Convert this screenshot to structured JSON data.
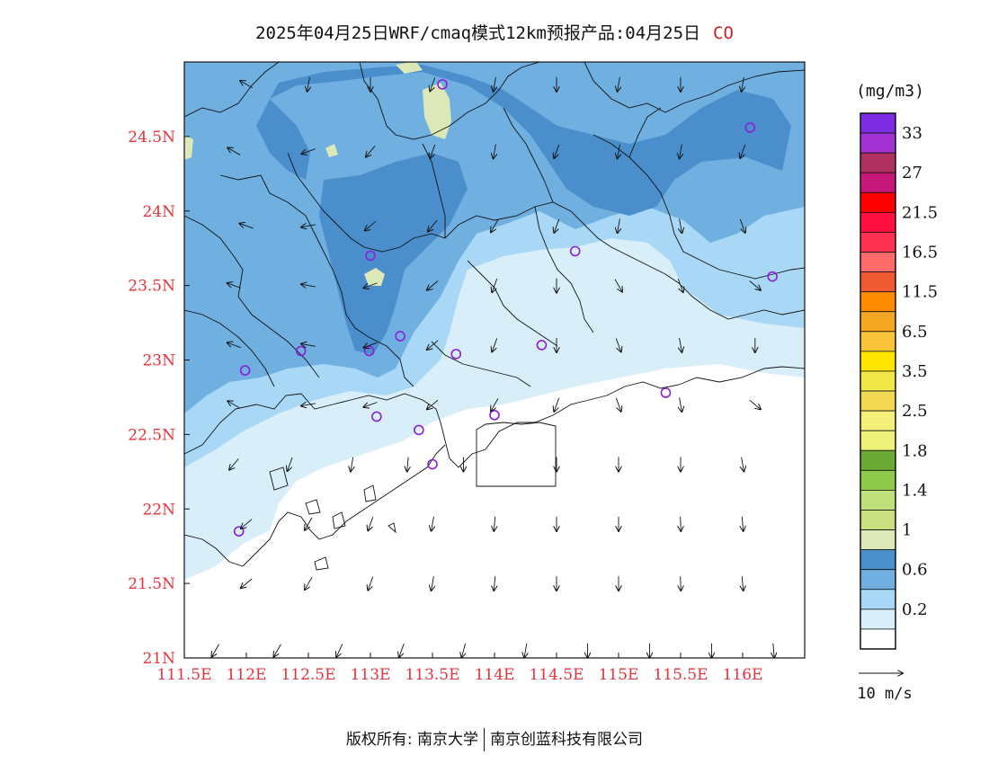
{
  "title": {
    "main": "2025年04月25日WRF/cmaq模式12km预报产品:04月25日",
    "species": "CO"
  },
  "axes": {
    "x_ticks": [
      "111.5E",
      "112E",
      "112.5E",
      "113E",
      "113.5E",
      "114E",
      "114.5E",
      "115E",
      "115.5E",
      "116E"
    ],
    "y_ticks": [
      "21N",
      "21.5N",
      "22N",
      "22.5N",
      "23N",
      "23.5N",
      "24N",
      "24.5N"
    ],
    "x_range": [
      111.5,
      116.5
    ],
    "y_range": [
      21.0,
      25.0
    ],
    "tick_color": "#e5323b"
  },
  "legend": {
    "unit": "(mg/m3)",
    "labels": [
      "33",
      "27",
      "21.5",
      "16.5",
      "11.5",
      "6.5",
      "3.5",
      "2.5",
      "1.8",
      "1.4",
      "1",
      "0.6",
      "0.2"
    ],
    "colors_top_to_bottom": [
      "#7b2be0",
      "#a332d4",
      "#b03060",
      "#c8177a",
      "#ff0000",
      "#ff1040",
      "#ff3050",
      "#ff6a6a",
      "#f05a30",
      "#ff8c00",
      "#f5a623",
      "#f7c43a",
      "#ffe600",
      "#f3e84a",
      "#f0d850",
      "#f4f07a",
      "#eef27a",
      "#6aaa35",
      "#8fca4a",
      "#bfe07a",
      "#c8e080",
      "#dce8b8",
      "#4a8fcc",
      "#6fb0e0",
      "#a8d8f5",
      "#d8eef9",
      "#ffffff"
    ]
  },
  "wind_scale": {
    "label": "10 m/s"
  },
  "footer": {
    "left": "版权所有: 南京大学",
    "right": "南京创蓝科技有限公司"
  },
  "map": {
    "fill_colors": {
      "band_white": "#ffffff",
      "band_0_2": "#d8eef9",
      "band_0_6": "#a8d8f5",
      "band_0_8": "#6fb0e0",
      "band_1": "#4a8fcc",
      "band_1_2": "#dce8b8"
    },
    "stations": [
      [
        113.58,
        24.85
      ],
      [
        116.06,
        24.56
      ],
      [
        114.65,
        23.73
      ],
      [
        116.24,
        23.56
      ],
      [
        113.0,
        23.7
      ],
      [
        113.24,
        23.16
      ],
      [
        112.99,
        23.06
      ],
      [
        112.44,
        23.06
      ],
      [
        111.99,
        22.93
      ],
      [
        113.69,
        23.04
      ],
      [
        114.38,
        23.1
      ],
      [
        115.38,
        22.78
      ],
      [
        113.05,
        22.62
      ],
      [
        113.39,
        22.53
      ],
      [
        114.0,
        22.63
      ],
      [
        113.5,
        22.3
      ],
      [
        111.94,
        21.85
      ]
    ],
    "wind_arrows": [
      [
        111.75,
        21.05,
        210
      ],
      [
        112.25,
        21.05,
        210
      ],
      [
        112.75,
        21.05,
        205
      ],
      [
        113.25,
        21.05,
        200
      ],
      [
        113.75,
        21.05,
        195
      ],
      [
        114.25,
        21.05,
        190
      ],
      [
        114.75,
        21.05,
        180
      ],
      [
        115.25,
        21.05,
        180
      ],
      [
        115.75,
        21.05,
        180
      ],
      [
        116.25,
        21.05,
        175
      ],
      [
        112.0,
        21.5,
        230
      ],
      [
        112.5,
        21.5,
        210
      ],
      [
        113.0,
        21.5,
        200
      ],
      [
        113.5,
        21.5,
        190
      ],
      [
        114.0,
        21.5,
        185
      ],
      [
        114.5,
        21.5,
        180
      ],
      [
        115.0,
        21.5,
        180
      ],
      [
        115.5,
        21.5,
        178
      ],
      [
        116.0,
        21.5,
        175
      ],
      [
        112.0,
        21.9,
        230
      ],
      [
        112.5,
        21.9,
        210
      ],
      [
        113.0,
        21.9,
        200
      ],
      [
        113.5,
        21.9,
        190
      ],
      [
        114.0,
        21.9,
        185
      ],
      [
        114.5,
        21.9,
        180
      ],
      [
        115.0,
        21.9,
        180
      ],
      [
        115.5,
        21.9,
        178
      ],
      [
        116.0,
        21.9,
        175
      ],
      [
        111.9,
        22.3,
        220
      ],
      [
        112.35,
        22.3,
        200
      ],
      [
        112.85,
        22.3,
        190
      ],
      [
        113.3,
        22.3,
        185
      ],
      [
        113.75,
        22.3,
        180
      ],
      [
        114.5,
        22.3,
        180
      ],
      [
        115.0,
        22.3,
        180
      ],
      [
        115.5,
        22.3,
        180
      ],
      [
        116.0,
        22.3,
        170
      ],
      [
        111.9,
        22.7,
        300
      ],
      [
        112.5,
        22.7,
        260
      ],
      [
        113.0,
        22.7,
        250
      ],
      [
        113.5,
        22.7,
        230
      ],
      [
        114.0,
        22.7,
        210
      ],
      [
        114.5,
        22.7,
        200
      ],
      [
        115.0,
        22.7,
        160
      ],
      [
        115.5,
        22.7,
        170
      ],
      [
        116.1,
        22.7,
        130
      ],
      [
        111.9,
        23.1,
        290
      ],
      [
        112.5,
        23.1,
        280
      ],
      [
        113.0,
        23.1,
        250
      ],
      [
        113.5,
        23.1,
        230
      ],
      [
        114.0,
        23.1,
        200
      ],
      [
        114.5,
        23.1,
        180
      ],
      [
        115.0,
        23.1,
        160
      ],
      [
        115.5,
        23.1,
        170
      ],
      [
        116.1,
        23.1,
        180
      ],
      [
        111.9,
        23.5,
        290
      ],
      [
        112.5,
        23.5,
        280
      ],
      [
        113.0,
        23.5,
        250
      ],
      [
        113.5,
        23.5,
        230
      ],
      [
        114.0,
        23.5,
        200
      ],
      [
        114.5,
        23.5,
        180
      ],
      [
        115.0,
        23.5,
        150
      ],
      [
        115.5,
        23.5,
        160
      ],
      [
        116.1,
        23.5,
        130
      ],
      [
        112.0,
        23.9,
        290
      ],
      [
        112.5,
        23.9,
        260
      ],
      [
        113.0,
        23.9,
        230
      ],
      [
        113.5,
        23.9,
        220
      ],
      [
        114.0,
        23.9,
        210
      ],
      [
        114.5,
        23.9,
        200
      ],
      [
        115.0,
        23.9,
        190
      ],
      [
        115.5,
        23.9,
        170
      ],
      [
        116.0,
        23.9,
        160
      ],
      [
        111.9,
        24.4,
        300
      ],
      [
        112.5,
        24.4,
        250
      ],
      [
        113.0,
        24.4,
        220
      ],
      [
        113.5,
        24.4,
        200
      ],
      [
        114.0,
        24.4,
        190
      ],
      [
        114.5,
        24.4,
        200
      ],
      [
        115.0,
        24.4,
        190
      ],
      [
        115.5,
        24.4,
        190
      ],
      [
        116.0,
        24.4,
        200
      ],
      [
        112.0,
        24.85,
        300
      ],
      [
        112.5,
        24.85,
        190
      ],
      [
        113.0,
        24.85,
        180
      ],
      [
        113.5,
        24.85,
        200
      ],
      [
        114.0,
        24.85,
        190
      ],
      [
        114.5,
        24.85,
        180
      ],
      [
        115.0,
        24.85,
        190
      ],
      [
        115.5,
        24.85,
        180
      ],
      [
        116.0,
        24.85,
        190
      ]
    ]
  }
}
